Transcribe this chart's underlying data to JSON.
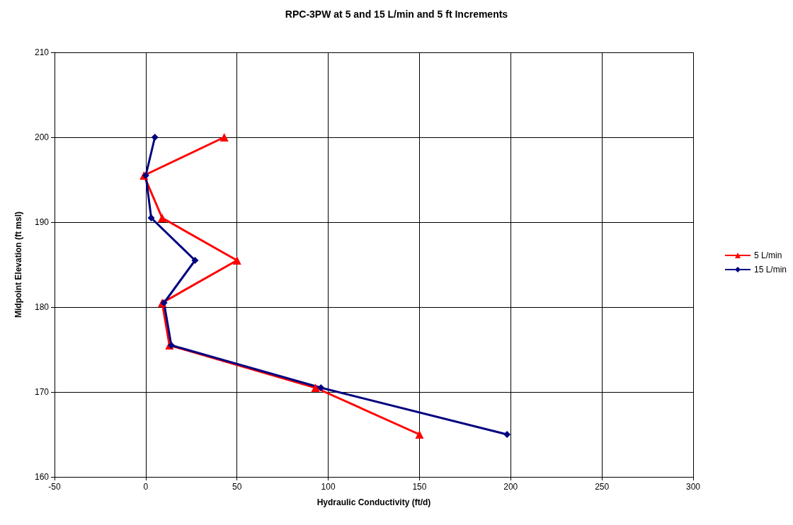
{
  "chart_data": {
    "type": "line",
    "title": "RPC-3PW at 5 and 15 L/min and 5 ft Increments",
    "xlabel": "Hydraulic Conductivity (ft/d)",
    "ylabel": "Midpoint Elevation (ft msl)",
    "series": [
      {
        "name": "5 L/min",
        "color": "#ff0000",
        "marker": "triangle",
        "x": [
          43,
          -1,
          9,
          50,
          9,
          13,
          93,
          150
        ],
        "values": [
          200,
          195.5,
          190.5,
          185.5,
          180.5,
          175.5,
          170.5,
          165
        ]
      },
      {
        "name": "15 L/min",
        "color": "#000080",
        "marker": "diamond",
        "x": [
          5,
          0,
          3,
          27,
          10,
          14,
          96,
          198
        ],
        "values": [
          200,
          195.5,
          190.5,
          185.5,
          180.5,
          175.5,
          170.5,
          165
        ]
      }
    ],
    "xlim": [
      -50,
      300
    ],
    "xticks": [
      -50,
      0,
      50,
      100,
      150,
      200,
      250,
      300
    ],
    "ylim": [
      160,
      210
    ],
    "yticks": [
      160,
      170,
      180,
      190,
      200,
      210
    ],
    "grid": true,
    "legend": "right"
  }
}
